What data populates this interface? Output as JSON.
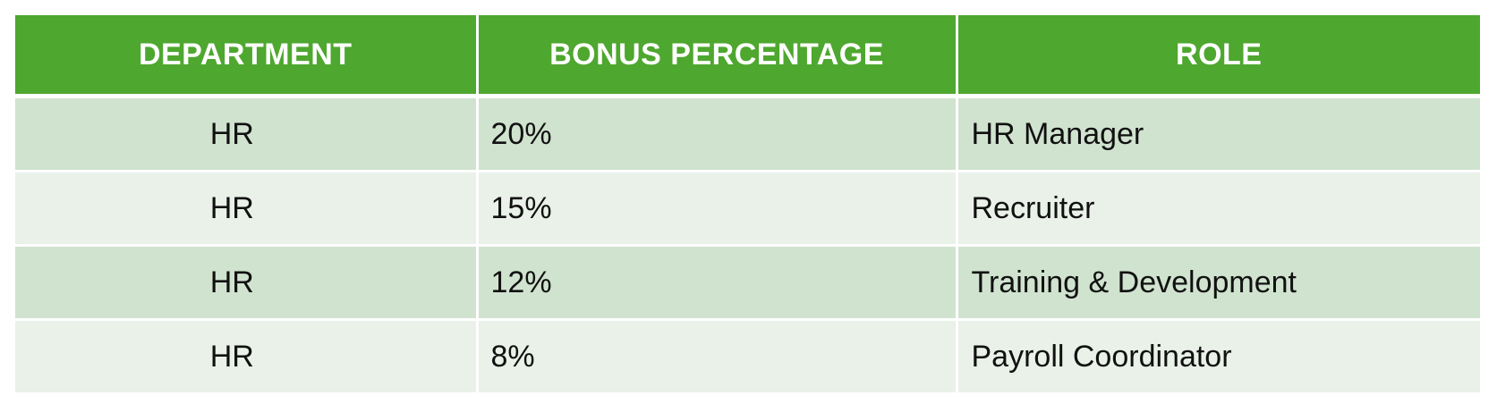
{
  "table": {
    "headers": [
      "DEPARTMENT",
      "BONUS PERCENTAGE",
      "ROLE"
    ],
    "rows": [
      {
        "department": "HR",
        "bonus": "20%",
        "role": "HR Manager"
      },
      {
        "department": "HR",
        "bonus": "15%",
        "role": "Recruiter"
      },
      {
        "department": "HR",
        "bonus": "12%",
        "role": "Training & Development"
      },
      {
        "department": "HR",
        "bonus": "8%",
        "role": "Payroll Coordinator"
      }
    ],
    "colors": {
      "header_bg": "#4ea72e",
      "header_text": "#ffffff",
      "row_band_1": "#d0e3cf",
      "row_band_2": "#e9f1e8"
    }
  }
}
